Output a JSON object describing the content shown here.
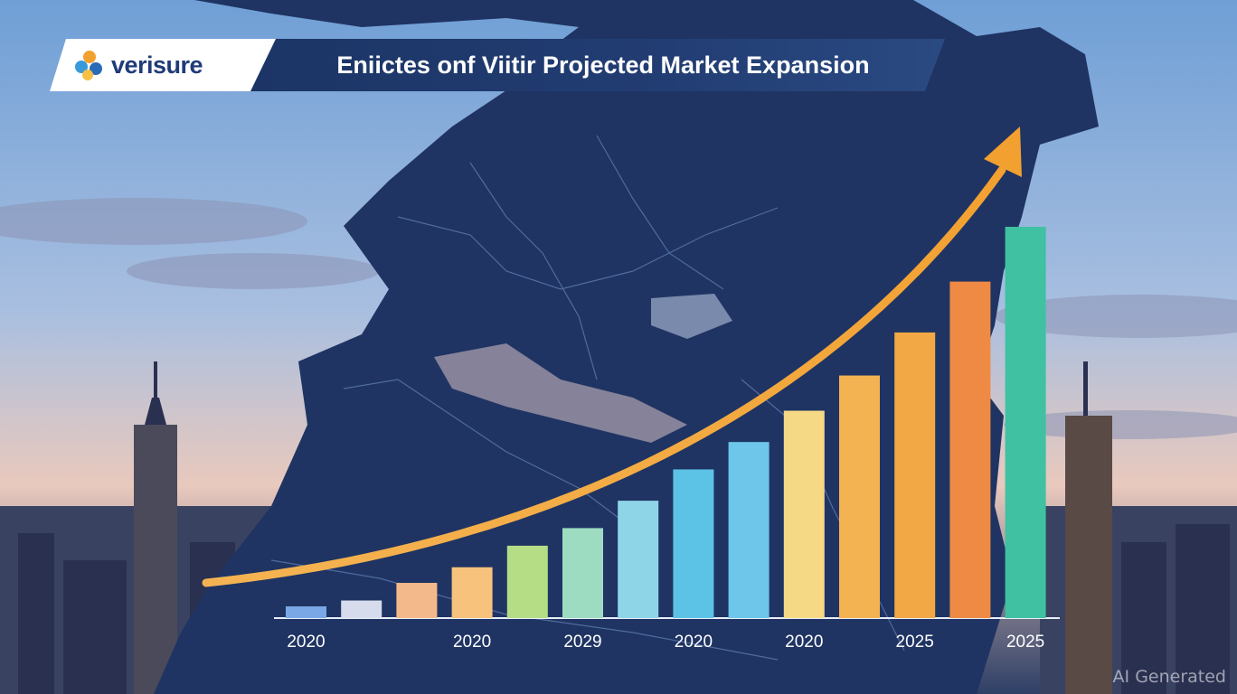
{
  "header": {
    "brand": "verisure",
    "title": "Eniictes onf Viitir Projected Market Expansion"
  },
  "watermark": "AI Generated",
  "colors": {
    "sky_top": "#7fa6d6",
    "sky_bottom": "#e8c6b8",
    "map": "#1f3463",
    "arrow": "#f0a535"
  },
  "chart_data": {
    "type": "bar",
    "title": "Eniictes onf Viitir Projected Market Expansion",
    "xlabel": "",
    "ylabel": "",
    "ylim": [
      0,
      100
    ],
    "grid": false,
    "legend": "none",
    "categories": [
      "",
      "",
      "",
      "",
      "",
      "",
      "",
      "",
      "",
      "",
      "",
      "",
      "",
      ""
    ],
    "tick_labels": [
      {
        "index": 0,
        "label": "2020"
      },
      {
        "index": 3,
        "label": "2020"
      },
      {
        "index": 5,
        "label": "2029"
      },
      {
        "index": 7,
        "label": "2020"
      },
      {
        "index": 9,
        "label": "2020"
      },
      {
        "index": 11,
        "label": "2025"
      },
      {
        "index": 13,
        "label": "2025"
      }
    ],
    "values": [
      3,
      4.5,
      9,
      13,
      18.5,
      23,
      30,
      38,
      45,
      53,
      62,
      73,
      86,
      100
    ],
    "bar_colors": [
      "#7aa8e6",
      "#d6dcec",
      "#f4b98a",
      "#f6c27c",
      "#b5dd86",
      "#9ddcc0",
      "#8fd5e8",
      "#5cc3e6",
      "#6ec6ea",
      "#f6d985",
      "#f4b352",
      "#f2a844",
      "#ee8a44",
      "#3fc1a2"
    ],
    "trend_arrow": true
  }
}
